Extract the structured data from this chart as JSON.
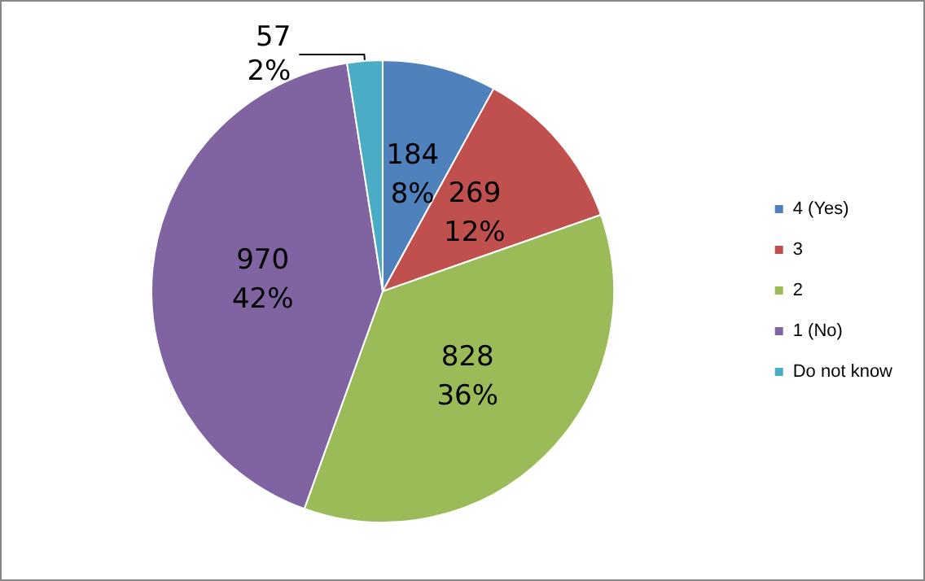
{
  "chart_data": {
    "type": "pie",
    "categories": [
      "4 (Yes)",
      "3",
      "2",
      "1 (No)",
      "Do not know"
    ],
    "values": [
      184,
      269,
      828,
      970,
      57
    ],
    "colors": [
      "#4f81bd",
      "#c0504d",
      "#9bbb59",
      "#8064a2",
      "#4bacc6"
    ],
    "value_labels": [
      "184\n8%",
      "269\n12%",
      "828\n36%",
      "970\n42%",
      "57\n2%"
    ],
    "legend": "right"
  }
}
